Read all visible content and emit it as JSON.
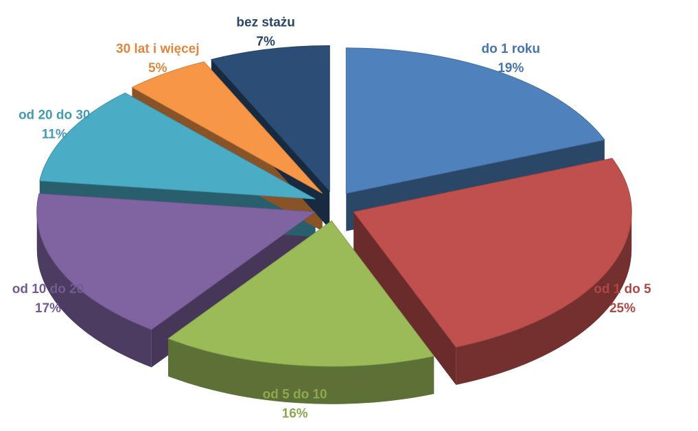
{
  "chart_data": {
    "type": "pie",
    "categories": [
      "do 1 roku",
      "od 1 do 5",
      "od 5 do 10",
      "od 10 do 20",
      "od 20 do 30",
      "30 lat i więcej",
      "bez stażu"
    ],
    "values": [
      19,
      25,
      16,
      17,
      11,
      5,
      7
    ],
    "value_labels": [
      "19%",
      "25%",
      "16%",
      "17%",
      "11%",
      "5%",
      "7%"
    ],
    "colors": [
      "#4f81bd",
      "#c0504d",
      "#9bbb59",
      "#8064a2",
      "#4bacc6",
      "#f79646",
      "#2c4d75"
    ]
  }
}
